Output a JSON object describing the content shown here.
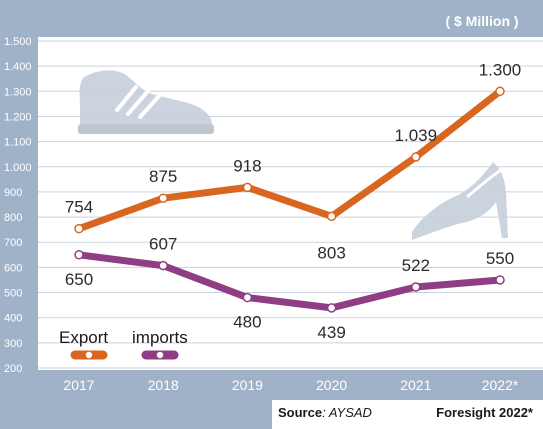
{
  "chart_data": {
    "type": "line",
    "unit_label": "( $ Million )",
    "categories": [
      "2017",
      "2018",
      "2019",
      "2020",
      "2021",
      "2022*"
    ],
    "y_ticks": [
      "200",
      "300",
      "400",
      "500",
      "600",
      "700",
      "800",
      "900",
      "1.000",
      "1.100",
      "1.200",
      "1.300",
      "1.400",
      "1.500"
    ],
    "ylim": [
      200,
      1500
    ],
    "grid": true,
    "legend_position": "bottom-left",
    "series": [
      {
        "name": "Export",
        "color": "#d9661f",
        "values": [
          754,
          875,
          918,
          803,
          1039,
          1300
        ],
        "labels": [
          "754",
          "875",
          "918",
          "803",
          "1.039",
          "1.300"
        ]
      },
      {
        "name": "imports",
        "color": "#8f3e85",
        "values": [
          650,
          607,
          480,
          439,
          522,
          550
        ],
        "labels": [
          "650",
          "607",
          "480",
          "439",
          "522",
          "550"
        ]
      }
    ]
  },
  "footer": {
    "source_label": "Source",
    "source_value": ": AYSAD",
    "note": "Foresight 2022*"
  },
  "decorations": {
    "shoe_icon": "sneaker-icon",
    "heel_icon": "high-heel-icon"
  },
  "colors": {
    "frame": "#9fb2c7",
    "plot_background": "#ffffff",
    "export": "#d9661f",
    "imports": "#8f3e85"
  }
}
